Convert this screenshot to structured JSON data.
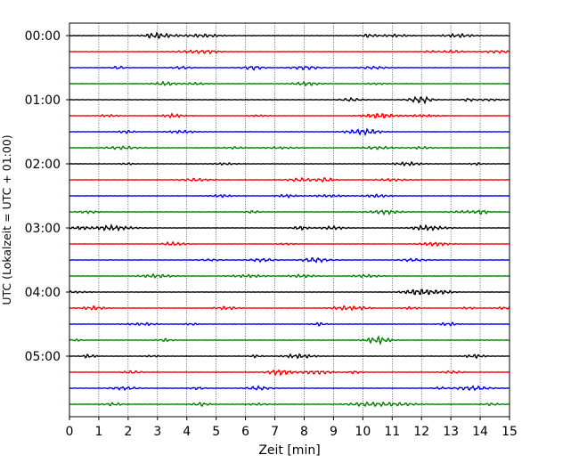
{
  "chart_data": {
    "type": "line",
    "subtype": "helicorder",
    "title": "",
    "xlabel": "Zeit  [min]",
    "ylabel": "UTC (Lokalzeit = UTC + 01:00)",
    "xlim": [
      0,
      15
    ],
    "x_ticks": [
      0,
      1,
      2,
      3,
      4,
      5,
      6,
      7,
      8,
      9,
      10,
      11,
      12,
      13,
      14,
      15
    ],
    "y_ticks": [
      "00:00",
      "01:00",
      "02:00",
      "03:00",
      "04:00",
      "05:00"
    ],
    "minutes_per_line": 15,
    "trace_count": 24,
    "trace_colors": [
      "#000000",
      "#ff0000",
      "#0000ff",
      "#008000"
    ],
    "grid": "vertical-dotted",
    "legend": "none"
  }
}
